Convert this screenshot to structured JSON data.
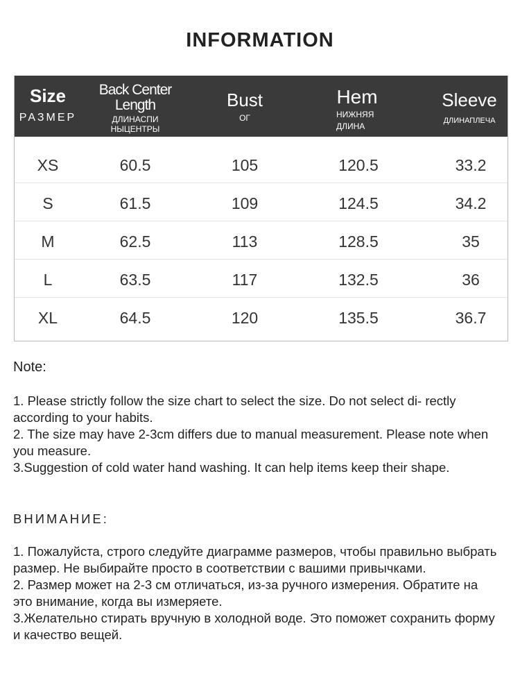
{
  "title": "INFORMATION",
  "headers": [
    {
      "en": "Size",
      "ru": "РАЗМЕР"
    },
    {
      "en": "Back Center Length",
      "ru": "ДЛИНАСПИ НЫЦЕНТРЫ"
    },
    {
      "en": "Bust",
      "ru": "ОГ"
    },
    {
      "en": "Hem",
      "ru": "НИЖНЯЯ ДЛИНА"
    },
    {
      "en": "Sleeve",
      "ru": "ДЛИНАПЛЕЧА"
    }
  ],
  "rows": [
    [
      "XS",
      "60.5",
      "105",
      "120.5",
      "33.2"
    ],
    [
      "S",
      "61.5",
      "109",
      "124.5",
      "34.2"
    ],
    [
      "M",
      "62.5",
      "113",
      "128.5",
      "35"
    ],
    [
      "L",
      "63.5",
      "117",
      "132.5",
      "36"
    ],
    [
      "XL",
      "64.5",
      "120",
      "135.5",
      "36.7"
    ]
  ],
  "note": {
    "heading": "Note:",
    "items": [
      "1. Please strictly follow the size chart  to select the size. Do not select di- rectly according to your habits.",
      "2. The size may have 2-3cm differs due to manual measurement. Please note when you measure.",
      "3.Suggestion of cold water hand washing. It can help items keep their shape."
    ]
  },
  "note_ru": {
    "heading": "ВНИМАНИЕ:",
    "items": [
      "1. Пожалуйста, строго следуйте диаграмме размеров, чтобы правильно выбрать размер. Не выбирайте просто в соответствии с вашими привычками.",
      "2. Размер может на 2-3 см отличаться, из-за ручного измерения. Обратите на это внимание, когда вы измеряете.",
      "3.Желательно стирать вручную в холодной воде. Это поможет сохранить форму и качество вещей."
    ]
  }
}
